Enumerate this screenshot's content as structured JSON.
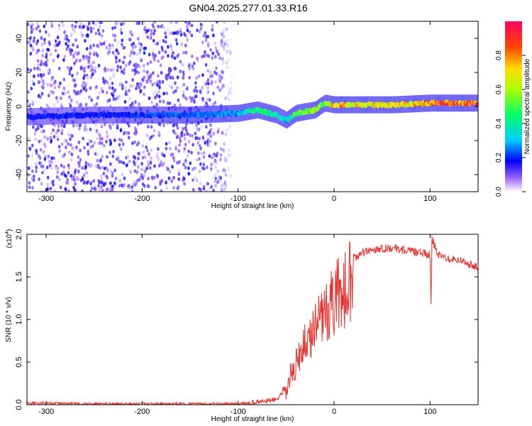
{
  "figure": {
    "title": "GN04.2025.277.01.33.R16"
  },
  "chart_data": [
    {
      "type": "heatmap",
      "xlabel": "Height of straight line (km)",
      "ylabel": "Frequency (Hz)",
      "xlim": [
        -320,
        150
      ],
      "ylim": [
        -50,
        50
      ],
      "xticks": [
        -300,
        -200,
        -100,
        0,
        100
      ],
      "yticks": [
        -40,
        -20,
        0,
        20,
        40
      ],
      "colorbar": {
        "label": "Normalized spectral amplitude",
        "range": [
          0,
          1
        ],
        "ticks": [
          "0.0",
          "0.2",
          "0.4",
          "0.6",
          "0.8"
        ],
        "colormap": [
          "#ffffff",
          "#8800ff",
          "#0000ff",
          "#00ffff",
          "#00ff00",
          "#ffff00",
          "#ff8800",
          "#ff0000",
          "#ff0088"
        ]
      },
      "ridge": {
        "description_points_x": [
          -320,
          -250,
          -150,
          -100,
          -80,
          -60,
          -50,
          -40,
          -20,
          -10,
          0,
          30,
          60,
          100,
          150
        ],
        "center_freq": [
          -6,
          -5,
          -5,
          -4,
          -2,
          -5,
          -8,
          -4,
          -2,
          2,
          1,
          1,
          1,
          2,
          2
        ],
        "amplitude": [
          0.2,
          0.2,
          0.25,
          0.3,
          0.45,
          0.4,
          0.35,
          0.5,
          0.65,
          0.6,
          0.8,
          0.7,
          0.7,
          0.85,
          0.95
        ]
      },
      "noise_floor_extent_x": [
        -320,
        -120
      ]
    },
    {
      "type": "line",
      "xlabel": "Height of straight line (km)",
      "ylabel": "SNR (10 * v/v)",
      "y_multiplier": "(x10^4)",
      "y_multiplier_base": "(x10",
      "y_multiplier_exp": "4",
      "y_multiplier_close": ")",
      "xlim": [
        -320,
        150
      ],
      "ylim": [
        0,
        2.0
      ],
      "xticks": [
        -300,
        -200,
        -100,
        0,
        100
      ],
      "yticks": [
        "0.0",
        "0.5",
        "1.0",
        "1.5",
        "2.0"
      ],
      "color": "#e8302c",
      "series": [
        {
          "x": [
            -320,
            -250,
            -200,
            -150,
            -100,
            -80,
            -60,
            -50,
            -45,
            -40,
            -35,
            -30,
            -25,
            -20,
            -15,
            -10,
            -5,
            0,
            10,
            20,
            30,
            40,
            50,
            60,
            70,
            80,
            90,
            100,
            101,
            102,
            110,
            120,
            130,
            140,
            150
          ],
          "y": [
            0.02,
            0.01,
            0.01,
            0.01,
            0.01,
            0.03,
            0.06,
            0.15,
            0.35,
            0.55,
            0.75,
            0.85,
            0.95,
            1.05,
            1.15,
            1.3,
            1.35,
            1.45,
            1.6,
            1.72,
            1.78,
            1.82,
            1.84,
            1.84,
            1.82,
            1.8,
            1.78,
            1.76,
            1.15,
            1.95,
            1.74,
            1.72,
            1.7,
            1.66,
            1.6
          ]
        }
      ],
      "annotations": [
        {
          "x": -30,
          "y": 1.85,
          "text": ""
        },
        {
          "x": 102,
          "y": 1.15,
          "text": ""
        }
      ]
    }
  ]
}
